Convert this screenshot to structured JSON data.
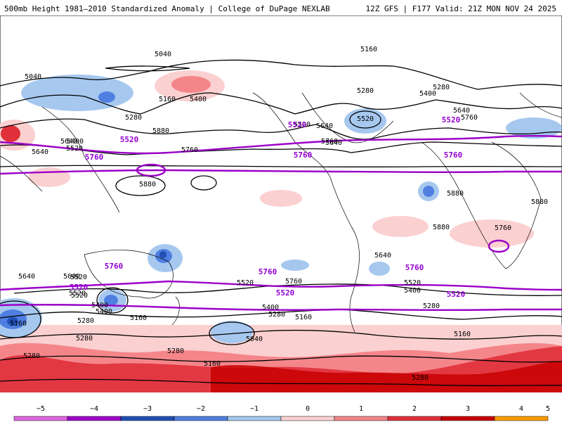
{
  "header": {
    "title": "500mb Height 1981–2010 Standardized Anomaly | College of DuPage NEXLAB",
    "run_info": "12Z GFS | F177 Valid: 21Z MON NOV 24 2025"
  },
  "legend": {
    "ticks": [
      "−5",
      "−4",
      "−3",
      "−2",
      "−1",
      "0",
      "1",
      "2",
      "3",
      "4",
      "5"
    ],
    "colors": [
      "#e066e0",
      "#9b00c8",
      "#1f4fb4",
      "#4f7fe0",
      "#a6c8ef",
      "#ffffff",
      "#fbd0d0",
      "#f4868a",
      "#e0303a",
      "#c80000",
      "#ff9c00"
    ]
  },
  "map": {
    "contour_labels": [
      {
        "text": "5040"
      },
      {
        "text": "5160"
      },
      {
        "text": "5040"
      },
      {
        "text": "5160"
      },
      {
        "text": "5280"
      },
      {
        "text": "5400"
      },
      {
        "text": "5520"
      },
      {
        "text": "5640"
      },
      {
        "text": "5760"
      },
      {
        "text": "5280"
      },
      {
        "text": "5400"
      },
      {
        "text": "5280"
      },
      {
        "text": "5520"
      },
      {
        "text": "5640"
      },
      {
        "text": "5760"
      },
      {
        "text": "5880"
      },
      {
        "text": "5880"
      },
      {
        "text": "5880"
      },
      {
        "text": "5880"
      },
      {
        "text": "5760"
      },
      {
        "text": "5640"
      },
      {
        "text": "5760"
      },
      {
        "text": "5520"
      },
      {
        "text": "5520"
      },
      {
        "text": "5400"
      },
      {
        "text": "5280"
      },
      {
        "text": "5160"
      },
      {
        "text": "5160"
      },
      {
        "text": "5280"
      },
      {
        "text": "5520"
      },
      {
        "text": "5400"
      },
      {
        "text": "5280"
      },
      {
        "text": "5160"
      },
      {
        "text": "5040"
      },
      {
        "text": "5160"
      },
      {
        "text": "5280"
      },
      {
        "text": "5640"
      },
      {
        "text": "5520"
      },
      {
        "text": "5400"
      },
      {
        "text": "5280"
      },
      {
        "text": "5160"
      },
      {
        "text": "5280"
      },
      {
        "text": "5640"
      },
      {
        "text": "5400"
      },
      {
        "text": "5520"
      },
      {
        "text": "5640"
      },
      {
        "text": "5760"
      },
      {
        "text": "5880"
      },
      {
        "text": "5640"
      },
      {
        "text": "5400"
      },
      {
        "text": "5520"
      },
      {
        "text": "5640"
      },
      {
        "text": "5280"
      }
    ],
    "purple_labels": [
      {
        "text": "5520"
      },
      {
        "text": "5520"
      },
      {
        "text": "5520"
      },
      {
        "text": "5760"
      },
      {
        "text": "5760"
      },
      {
        "text": "5760"
      },
      {
        "text": "5760"
      },
      {
        "text": "5760"
      },
      {
        "text": "5760"
      },
      {
        "text": "5520"
      },
      {
        "text": "5520"
      },
      {
        "text": "5520"
      }
    ]
  }
}
